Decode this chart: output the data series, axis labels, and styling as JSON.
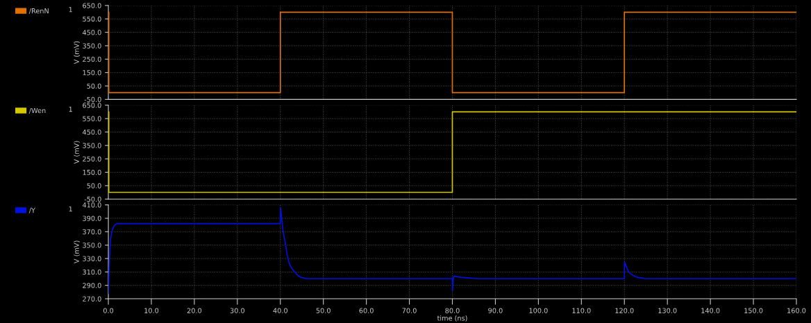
{
  "chart_data": [
    {
      "type": "line",
      "ylabel": "V (mV)",
      "annotations": [
        "1"
      ],
      "legend": "left",
      "grid": true,
      "tick_labels": "y",
      "xlim": [
        0,
        160
      ],
      "xticks": [
        0,
        10,
        20,
        30,
        40,
        50,
        60,
        70,
        80,
        90,
        100,
        110,
        120,
        130,
        140,
        150,
        160
      ],
      "ylim": [
        -50,
        650
      ],
      "yticks": [
        {
          "value": -50,
          "label": "-50.0"
        },
        {
          "value": 50,
          "label": "50.0"
        },
        {
          "value": 150,
          "label": "150.0"
        },
        {
          "value": 250,
          "label": "250.0"
        },
        {
          "value": 350,
          "label": "350.0"
        },
        {
          "value": 450,
          "label": "450.0"
        },
        {
          "value": 550,
          "label": "550.0"
        },
        {
          "value": 650,
          "label": "650.0"
        }
      ],
      "series": [
        {
          "name": "/RenN",
          "color": "#e07000",
          "x": [
            0,
            0.1,
            0.1,
            40,
            40,
            80,
            80,
            120,
            120,
            160
          ],
          "values": [
            600,
            600,
            0,
            0,
            600,
            600,
            0,
            0,
            600,
            600
          ]
        }
      ]
    },
    {
      "type": "line",
      "ylabel": "V (mV)",
      "annotations": [
        "1"
      ],
      "legend": "left",
      "grid": true,
      "tick_labels": "y",
      "xlim": [
        0,
        160
      ],
      "xticks": [
        0,
        10,
        20,
        30,
        40,
        50,
        60,
        70,
        80,
        90,
        100,
        110,
        120,
        130,
        140,
        150,
        160
      ],
      "ylim": [
        -50,
        650
      ],
      "yticks": [
        {
          "value": -50,
          "label": "-50.0"
        },
        {
          "value": 50,
          "label": "50.0"
        },
        {
          "value": 150,
          "label": "150.0"
        },
        {
          "value": 250,
          "label": "250.0"
        },
        {
          "value": 350,
          "label": "350.0"
        },
        {
          "value": 450,
          "label": "450.0"
        },
        {
          "value": 550,
          "label": "550.0"
        },
        {
          "value": 650,
          "label": "650.0"
        }
      ],
      "series": [
        {
          "name": "/Wen",
          "color": "#d4c800",
          "x": [
            0,
            0.1,
            0.1,
            80,
            80,
            160
          ],
          "values": [
            600,
            600,
            0,
            0,
            600,
            600
          ]
        }
      ]
    },
    {
      "type": "line",
      "ylabel": "V (mV)",
      "xlabel": "time (ns)",
      "annotations": [
        "1"
      ],
      "legend": "left",
      "grid": true,
      "xlim": [
        0,
        160
      ],
      "xticks": [
        {
          "value": 0,
          "label": "0.0"
        },
        {
          "value": 10,
          "label": "10.0"
        },
        {
          "value": 20,
          "label": "20.0"
        },
        {
          "value": 30,
          "label": "30.0"
        },
        {
          "value": 40,
          "label": "40.0"
        },
        {
          "value": 50,
          "label": "50.0"
        },
        {
          "value": 60,
          "label": "60.0"
        },
        {
          "value": 70,
          "label": "70.0"
        },
        {
          "value": 80,
          "label": "80.0"
        },
        {
          "value": 90,
          "label": "90.0"
        },
        {
          "value": 100,
          "label": "100.0"
        },
        {
          "value": 110,
          "label": "110.0"
        },
        {
          "value": 120,
          "label": "120.0"
        },
        {
          "value": 130,
          "label": "130.0"
        },
        {
          "value": 140,
          "label": "140.0"
        },
        {
          "value": 150,
          "label": "150.0"
        },
        {
          "value": 160,
          "label": "160.0"
        }
      ],
      "ylim": [
        270,
        410
      ],
      "yticks": [
        {
          "value": 270,
          "label": "270.0"
        },
        {
          "value": 290,
          "label": "290.0"
        },
        {
          "value": 310,
          "label": "310.0"
        },
        {
          "value": 330,
          "label": "330.0"
        },
        {
          "value": 350,
          "label": "350.0"
        },
        {
          "value": 370,
          "label": "370.0"
        },
        {
          "value": 390,
          "label": "390.0"
        },
        {
          "value": 410,
          "label": "410.0"
        }
      ],
      "series": [
        {
          "name": "/Y",
          "color": "#0010e0",
          "x": [
            0,
            0.1,
            0.3,
            0.5,
            0.8,
            1.1,
            1.5,
            2,
            40,
            40.05,
            40.3,
            40.7,
            41.1,
            41.6,
            42.1,
            42.7,
            43.2,
            44,
            44.8,
            46,
            80,
            80.05,
            80.15,
            80.4,
            81,
            82,
            84,
            86,
            120,
            120.05,
            120.3,
            120.7,
            121,
            121.5,
            122,
            123,
            124,
            125,
            160
          ],
          "values": [
            278,
            295,
            335,
            358,
            370,
            376,
            380,
            382,
            382,
            406,
            390,
            368,
            355,
            335,
            322,
            315,
            311,
            305,
            302,
            300,
            300,
            282,
            298,
            304,
            303,
            302,
            301,
            300,
            300,
            325,
            320,
            314,
            310,
            307,
            305,
            302,
            301,
            300,
            300
          ]
        }
      ]
    }
  ]
}
